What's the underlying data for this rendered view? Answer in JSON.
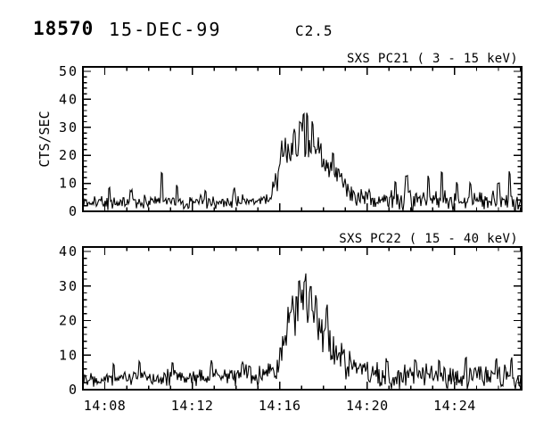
{
  "header": {
    "event_id": "18570",
    "date": "15-DEC-99",
    "goes_class": "C2.5"
  },
  "colors": {
    "foreground": "#000000",
    "background": "#ffffff"
  },
  "chart_data": [
    {
      "id": "pc21",
      "type": "line",
      "title": "SXS PC21  (  3 - 15 keV)",
      "ylabel": "CTS/SEC",
      "ylim": [
        0,
        51.6
      ],
      "yticks": [
        0,
        10,
        20,
        30,
        40,
        50
      ],
      "y_minor_step": 2,
      "x_axis": {
        "unit": "minutes after 14:07 UT",
        "range_minutes": [
          0,
          20.06
        ],
        "major_ticks": [
          {
            "t": 1,
            "label": "14:08"
          },
          {
            "t": 5,
            "label": "14:12"
          },
          {
            "t": 9,
            "label": "14:16"
          },
          {
            "t": 13,
            "label": "14:20"
          },
          {
            "t": 17,
            "label": "14:24"
          }
        ],
        "minor_step_minutes": 1
      },
      "grid": false,
      "legend": null,
      "noise_seed": 21,
      "envelope_t_mean_sigma": [
        [
          0.0,
          3.2,
          1.5
        ],
        [
          8.2,
          3.6,
          1.5
        ],
        [
          8.6,
          6,
          2
        ],
        [
          8.9,
          12,
          3.5
        ],
        [
          9.1,
          20,
          4.5
        ],
        [
          9.5,
          23,
          5
        ],
        [
          10.0,
          25,
          5
        ],
        [
          10.4,
          24,
          5
        ],
        [
          10.8,
          22,
          4.5
        ],
        [
          11.0,
          18,
          4
        ],
        [
          11.4,
          13,
          4
        ],
        [
          11.9,
          10,
          3
        ],
        [
          12.5,
          6,
          2.5
        ],
        [
          13.3,
          4,
          2.2
        ],
        [
          20.1,
          3.2,
          2.2
        ]
      ],
      "spikes_t_value": [
        [
          1.2,
          8
        ],
        [
          2.2,
          7.5
        ],
        [
          3.61,
          13
        ],
        [
          4.3,
          9
        ],
        [
          5.6,
          7.5
        ],
        [
          6.9,
          8
        ],
        [
          9.0,
          16
        ],
        [
          9.95,
          33
        ],
        [
          10.1,
          35
        ],
        [
          10.25,
          33
        ],
        [
          10.5,
          31
        ],
        [
          11.45,
          20
        ],
        [
          14.3,
          10
        ],
        [
          14.8,
          13
        ],
        [
          15.8,
          12
        ],
        [
          16.4,
          13.5
        ],
        [
          17.1,
          10
        ],
        [
          17.7,
          10
        ],
        [
          19.0,
          10
        ],
        [
          19.5,
          14
        ]
      ]
    },
    {
      "id": "pc22",
      "type": "line",
      "title": "SXS PC22  ( 15 - 40 keV)",
      "ylabel": "",
      "ylim": [
        0,
        41.3
      ],
      "yticks": [
        0,
        10,
        20,
        30,
        40
      ],
      "y_minor_step": 2,
      "x_axis": {
        "unit": "minutes after 14:07 UT",
        "range_minutes": [
          0,
          20.06
        ],
        "major_ticks": [
          {
            "t": 1,
            "label": "14:08"
          },
          {
            "t": 5,
            "label": "14:12"
          },
          {
            "t": 9,
            "label": "14:16"
          },
          {
            "t": 13,
            "label": "14:20"
          },
          {
            "t": 17,
            "label": "14:24"
          }
        ],
        "minor_step_minutes": 1
      },
      "grid": false,
      "legend": null,
      "noise_seed": 22,
      "envelope_t_mean_sigma": [
        [
          0.0,
          3.5,
          1.4
        ],
        [
          6.9,
          3.8,
          1.5
        ],
        [
          7.3,
          5,
          1.8
        ],
        [
          7.7,
          3.8,
          1.5
        ],
        [
          8.6,
          5,
          2
        ],
        [
          9.0,
          9,
          3
        ],
        [
          9.3,
          18,
          4.5
        ],
        [
          9.7,
          22,
          5
        ],
        [
          10.2,
          24,
          5
        ],
        [
          10.7,
          21,
          4.5
        ],
        [
          10.9,
          17,
          4.5
        ],
        [
          11.3,
          12,
          4
        ],
        [
          12.0,
          8,
          3
        ],
        [
          12.5,
          6,
          2.5
        ],
        [
          13.1,
          4.5,
          2.2
        ],
        [
          14.0,
          3.5,
          2.3
        ],
        [
          20.1,
          3.5,
          2.3
        ]
      ],
      "spikes_t_value": [
        [
          1.4,
          7.5
        ],
        [
          2.6,
          8
        ],
        [
          4.1,
          7.5
        ],
        [
          5.9,
          8
        ],
        [
          7.3,
          7.5
        ],
        [
          9.6,
          26
        ],
        [
          9.9,
          30
        ],
        [
          10.15,
          31.5
        ],
        [
          10.4,
          29
        ],
        [
          11.15,
          24
        ],
        [
          13.9,
          8.5
        ],
        [
          15.2,
          9
        ],
        [
          16.3,
          8
        ],
        [
          17.5,
          9.5
        ],
        [
          18.9,
          9
        ],
        [
          19.6,
          9
        ]
      ]
    }
  ]
}
